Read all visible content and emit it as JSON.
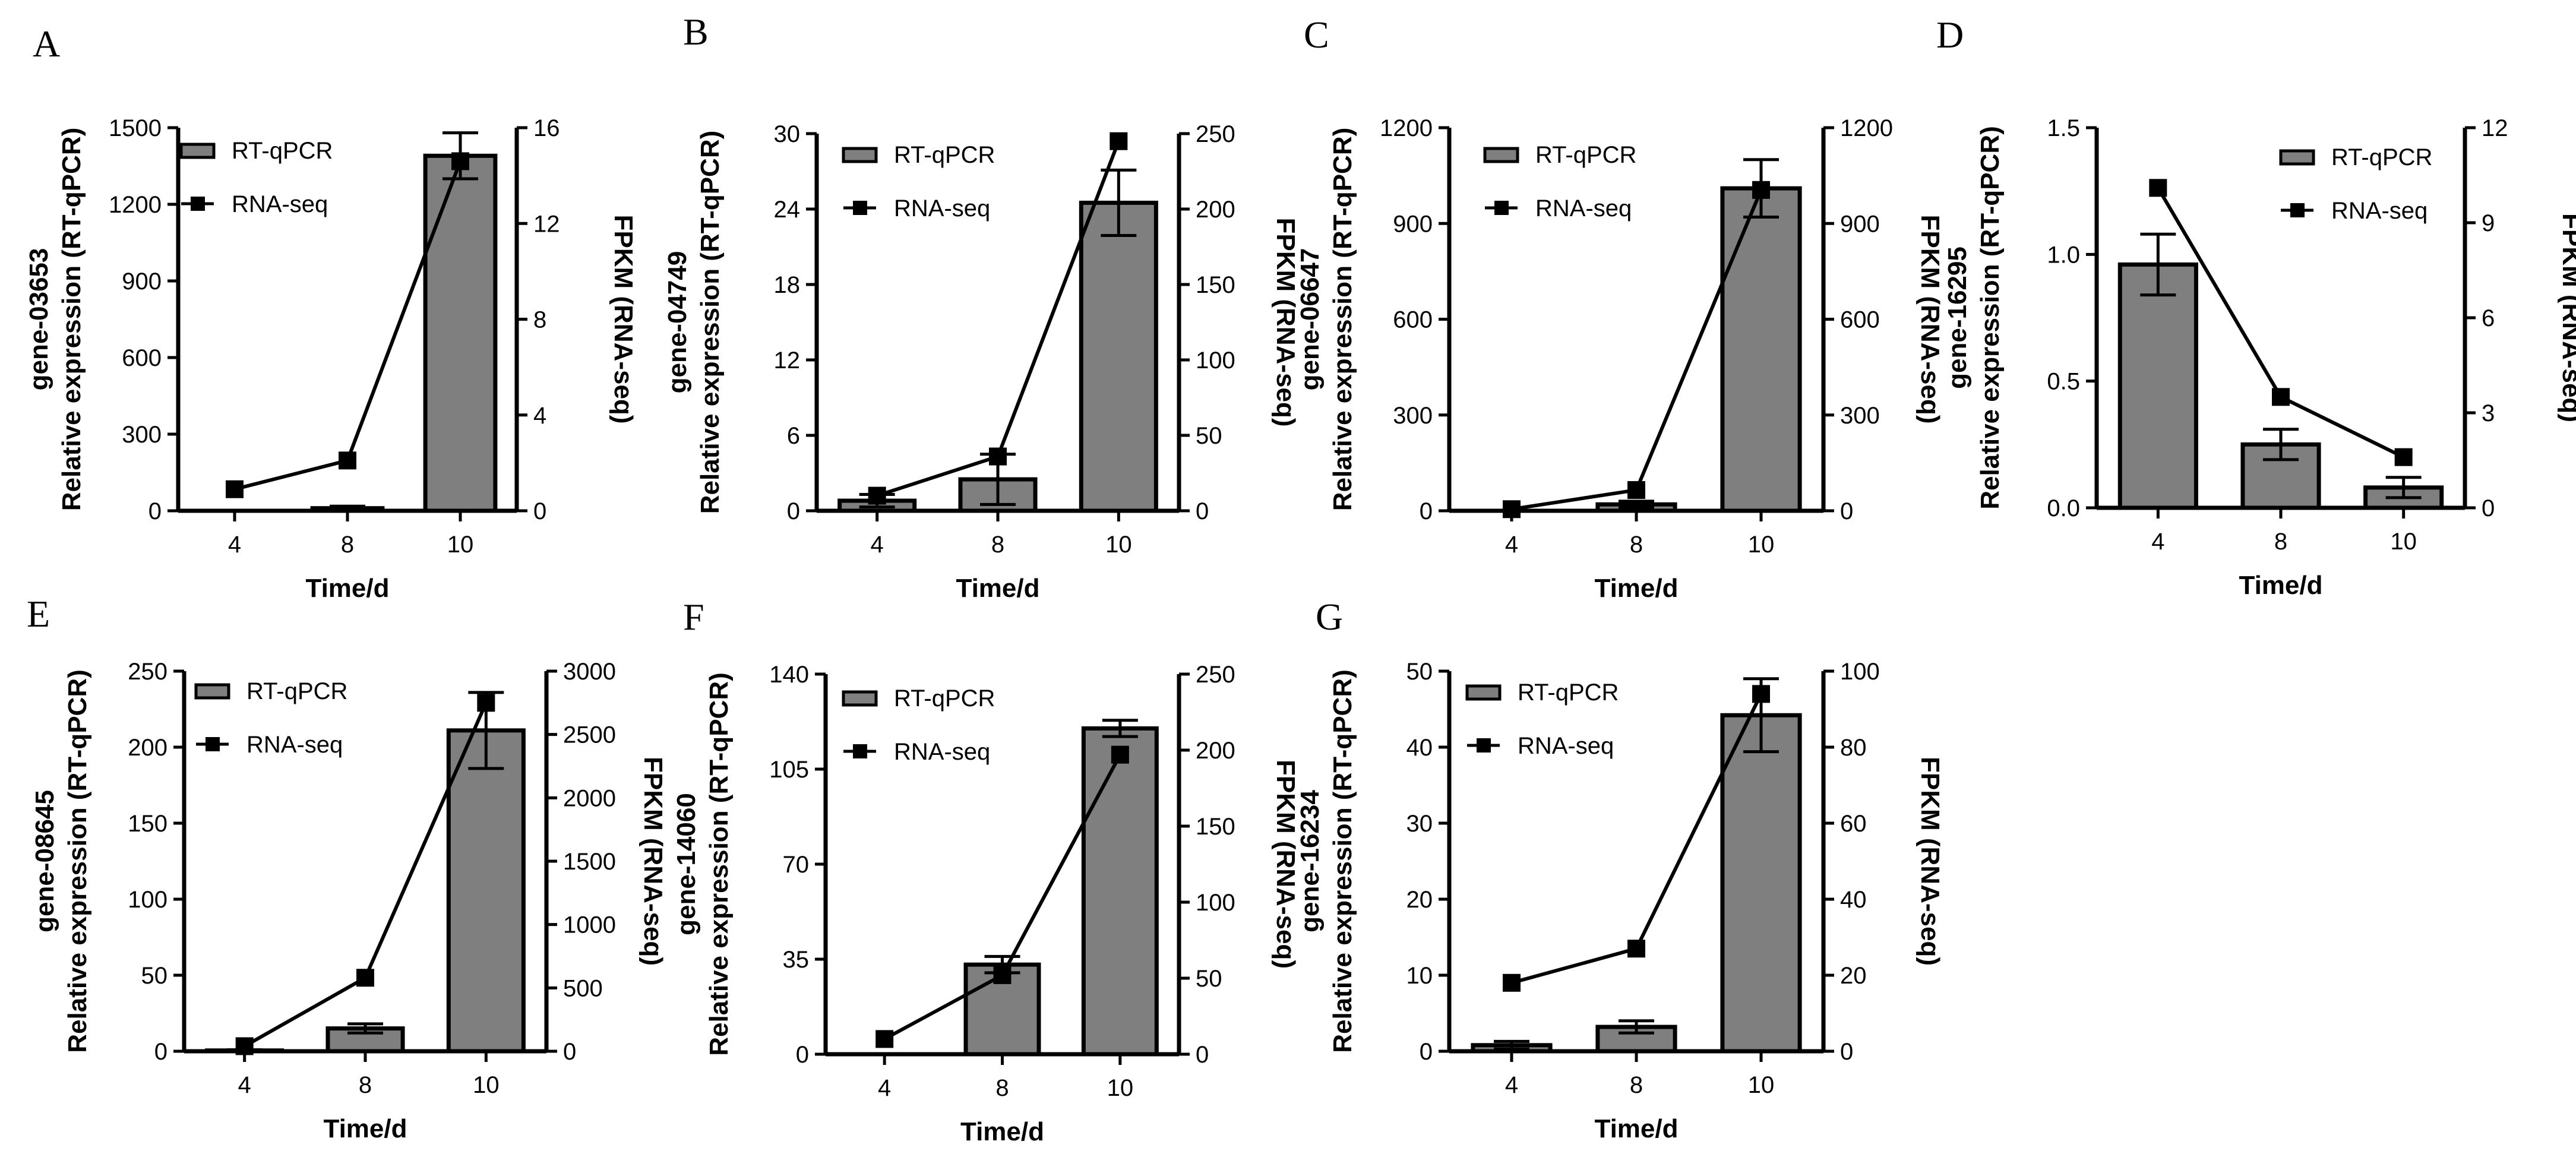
{
  "figure": {
    "bar_color": "#7f7f7f",
    "line_color": "#000000",
    "legend": {
      "bar_label": "RT-qPCR",
      "line_label": "RNA-seq"
    }
  },
  "chart_data": [
    {
      "panel": "A",
      "type": "bar+line",
      "categories": [
        "4",
        "8",
        "10"
      ],
      "xlabel": "Time/d",
      "ylabel_gene": "gene-03653",
      "ylabel": "Relative expression (RT-qPCR)",
      "y2label": "FPKM (RNA-seq)",
      "ylim": [
        0,
        1500
      ],
      "yticks": [
        "0",
        "300",
        "600",
        "900",
        "1200",
        "1500"
      ],
      "y2lim": [
        0,
        16
      ],
      "y2ticks": [
        "0",
        "4",
        "8",
        "12",
        "16"
      ],
      "series": [
        {
          "name": "RT-qPCR",
          "type": "bar",
          "axis": "left",
          "values": [
            0,
            10,
            1390
          ],
          "errors": [
            0,
            8,
            90
          ]
        },
        {
          "name": "RNA-seq",
          "type": "line",
          "axis": "right",
          "values": [
            0.9,
            2.1,
            14.6
          ]
        }
      ]
    },
    {
      "panel": "B",
      "type": "bar+line",
      "categories": [
        "4",
        "8",
        "10"
      ],
      "xlabel": "Time/d",
      "ylabel_gene": "gene-04749",
      "ylabel": "Relative expression (RT-qPCR)",
      "y2label": "FPKM (RNA-seq)",
      "ylim": [
        0,
        30
      ],
      "yticks": [
        "0",
        "6",
        "12",
        "18",
        "24",
        "30"
      ],
      "y2lim": [
        0,
        250
      ],
      "y2ticks": [
        "0",
        "50",
        "100",
        "150",
        "200",
        "250"
      ],
      "series": [
        {
          "name": "RT-qPCR",
          "type": "bar",
          "axis": "left",
          "values": [
            0.8,
            2.5,
            24.5
          ],
          "errors": [
            0.5,
            2.0,
            2.6
          ]
        },
        {
          "name": "RNA-seq",
          "type": "line",
          "axis": "right",
          "values": [
            10,
            36,
            245
          ]
        }
      ]
    },
    {
      "panel": "C",
      "type": "bar+line",
      "categories": [
        "4",
        "8",
        "10"
      ],
      "xlabel": "Time/d",
      "ylabel_gene": "gene-06647",
      "ylabel": "Relative expression (RT-qPCR)",
      "y2label": "FPKM (RNA-seq)",
      "ylim": [
        0,
        1200
      ],
      "yticks": [
        "0",
        "300",
        "600",
        "900",
        "1200"
      ],
      "y2lim": [
        0,
        1200
      ],
      "y2ticks": [
        "0",
        "300",
        "600",
        "900",
        "1200"
      ],
      "series": [
        {
          "name": "RT-qPCR",
          "type": "bar",
          "axis": "left",
          "values": [
            0,
            20,
            1010
          ],
          "errors": [
            0,
            10,
            90
          ]
        },
        {
          "name": "RNA-seq",
          "type": "line",
          "axis": "right",
          "values": [
            5,
            65,
            1005
          ]
        }
      ]
    },
    {
      "panel": "D",
      "type": "bar+line",
      "categories": [
        "4",
        "8",
        "10"
      ],
      "xlabel": "Time/d",
      "ylabel_gene": "gene-16295",
      "ylabel": "Relative expression (RT-qPCR)",
      "y2label": "FPKM (RNA-seq)",
      "ylim": [
        0,
        1.5
      ],
      "yticks": [
        "0.0",
        "0.5",
        "1.0",
        "1.5"
      ],
      "y2lim": [
        0,
        12
      ],
      "y2ticks": [
        "0",
        "3",
        "6",
        "9",
        "12"
      ],
      "series": [
        {
          "name": "RT-qPCR",
          "type": "bar",
          "axis": "left",
          "values": [
            0.96,
            0.25,
            0.08
          ],
          "errors": [
            0.12,
            0.06,
            0.04
          ]
        },
        {
          "name": "RNA-seq",
          "type": "line",
          "axis": "right",
          "values": [
            10.1,
            3.5,
            1.6
          ]
        }
      ]
    },
    {
      "panel": "E",
      "type": "bar+line",
      "categories": [
        "4",
        "8",
        "10"
      ],
      "xlabel": "Time/d",
      "ylabel_gene": "gene-08645",
      "ylabel": "Relative expression (RT-qPCR)",
      "y2label": "FPKM (RNA-seq)",
      "ylim": [
        0,
        250
      ],
      "yticks": [
        "0",
        "50",
        "100",
        "150",
        "200",
        "250"
      ],
      "y2lim": [
        0,
        3000
      ],
      "y2ticks": [
        "0",
        "500",
        "1000",
        "1500",
        "2000",
        "2500",
        "3000"
      ],
      "series": [
        {
          "name": "RT-qPCR",
          "type": "bar",
          "axis": "left",
          "values": [
            0.5,
            15,
            211
          ],
          "errors": [
            0.5,
            3,
            25
          ]
        },
        {
          "name": "RNA-seq",
          "type": "line",
          "axis": "right",
          "values": [
            40,
            580,
            2750
          ]
        }
      ]
    },
    {
      "panel": "F",
      "type": "bar+line",
      "categories": [
        "4",
        "8",
        "10"
      ],
      "xlabel": "Time/d",
      "ylabel_gene": "gene-14060",
      "ylabel": "Relative expression (RT-qPCR)",
      "y2label": "FPKM (RNA-seq)",
      "ylim": [
        0,
        140
      ],
      "yticks": [
        "0",
        "35",
        "70",
        "105",
        "140"
      ],
      "y2lim": [
        0,
        250
      ],
      "y2ticks": [
        "0",
        "50",
        "100",
        "150",
        "200",
        "250"
      ],
      "series": [
        {
          "name": "RT-qPCR",
          "type": "bar",
          "axis": "left",
          "values": [
            0,
            33,
            120
          ],
          "errors": [
            0,
            3,
            3
          ]
        },
        {
          "name": "RNA-seq",
          "type": "line",
          "axis": "right",
          "values": [
            10,
            52,
            197
          ]
        }
      ]
    },
    {
      "panel": "G",
      "type": "bar+line",
      "categories": [
        "4",
        "8",
        "10"
      ],
      "xlabel": "Time/d",
      "ylabel_gene": "gene-16234",
      "ylabel": "Relative expression (RT-qPCR)",
      "y2label": "FPKM (RNA-seq)",
      "ylim": [
        0,
        50
      ],
      "yticks": [
        "0",
        "10",
        "20",
        "30",
        "40",
        "50"
      ],
      "y2lim": [
        0,
        100
      ],
      "y2ticks": [
        "0",
        "20",
        "40",
        "60",
        "80",
        "100"
      ],
      "series": [
        {
          "name": "RT-qPCR",
          "type": "bar",
          "axis": "left",
          "values": [
            0.8,
            3.2,
            44.2
          ],
          "errors": [
            0.5,
            0.8,
            4.8
          ]
        },
        {
          "name": "RNA-seq",
          "type": "line",
          "axis": "right",
          "values": [
            18,
            27,
            94
          ]
        }
      ]
    }
  ]
}
